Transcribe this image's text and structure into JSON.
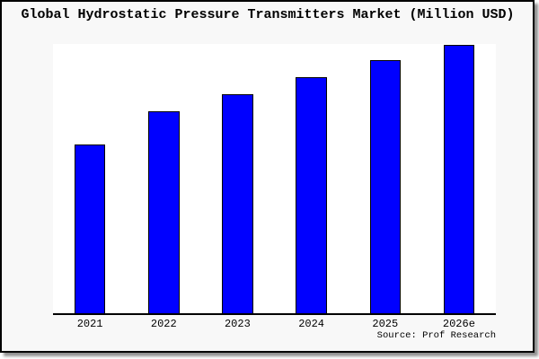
{
  "panel": {
    "background": "#f8f8f8",
    "border_color": "#000000",
    "shadow_color": "#909090",
    "plot_background": "#ffffff"
  },
  "title": "Global Hydrostatic Pressure Transmitters Market (Million USD)",
  "source": "Source: Prof Research",
  "chart_data": {
    "type": "bar",
    "title": "Global Hydrostatic Pressure Transmitters Market (Million USD)",
    "categories": [
      "2021",
      "2022",
      "2023",
      "2024",
      "2025",
      "2026e"
    ],
    "values": [
      62.8,
      75.2,
      81.5,
      88.0,
      94.1,
      100.0
    ],
    "value_note": "no y-axis, gridlines or data labels are shown; values are relative bar heights with 2026e = 100",
    "xlabel": "",
    "ylabel": "",
    "grid": false,
    "legend": false,
    "bar_color": "#0000ff",
    "bar_border_color": "#000000",
    "source": "Source: Prof Research"
  }
}
